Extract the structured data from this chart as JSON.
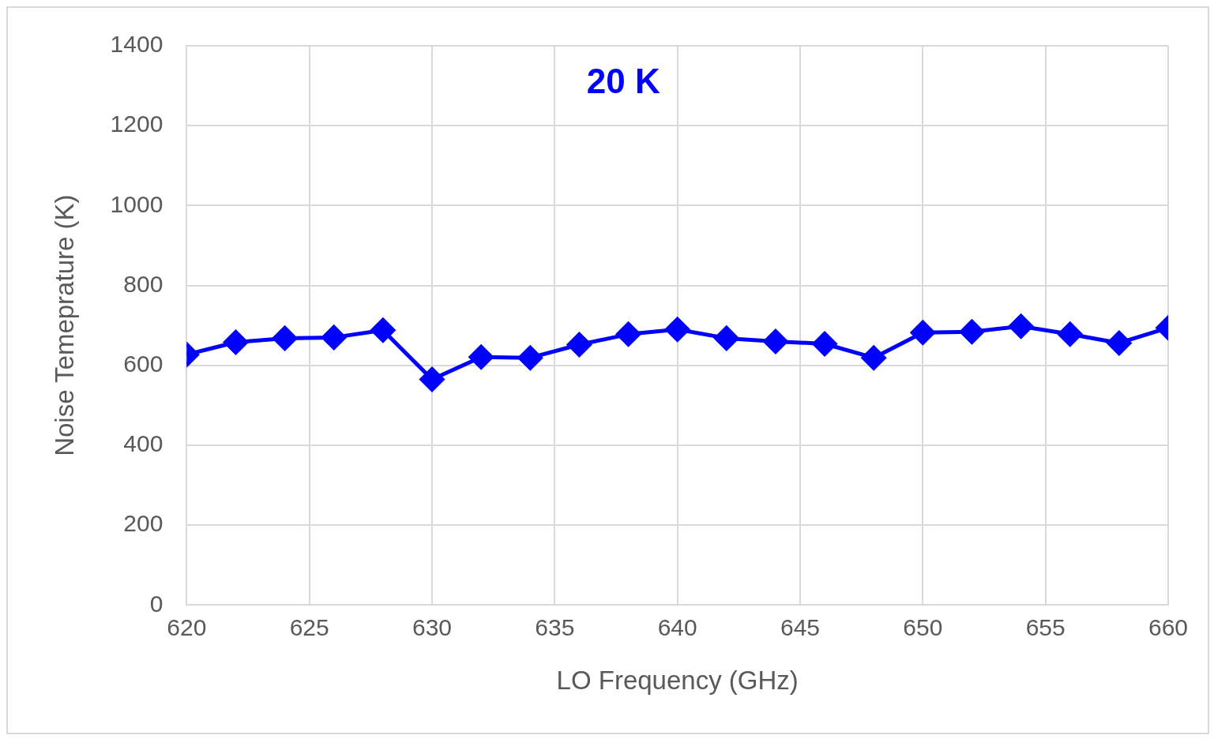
{
  "chart_data": {
    "type": "line",
    "xlabel": "LO Frequency (GHz)",
    "ylabel": "Noise Temeprature (K)",
    "annotations": [
      "20 K"
    ],
    "x": [
      620,
      622,
      624,
      626,
      628,
      630,
      632,
      634,
      636,
      638,
      640,
      642,
      644,
      646,
      648,
      650,
      652,
      654,
      656,
      658,
      660
    ],
    "series": [
      {
        "color": "#0000ff",
        "values": [
          627,
          658,
          668,
          670,
          688,
          565,
          621,
          619,
          652,
          678,
          690,
          668,
          660,
          654,
          619,
          682,
          684,
          698,
          678,
          656,
          694
        ]
      }
    ],
    "xlim": [
      620,
      660
    ],
    "xticks": [
      620,
      625,
      630,
      635,
      640,
      645,
      650,
      655,
      660
    ],
    "ylim": [
      0,
      1400
    ],
    "yticks": [
      0,
      200,
      400,
      600,
      800,
      1000,
      1200,
      1400
    ],
    "grid": true,
    "legend": false,
    "marker": "diamond",
    "line_style": "solid"
  }
}
